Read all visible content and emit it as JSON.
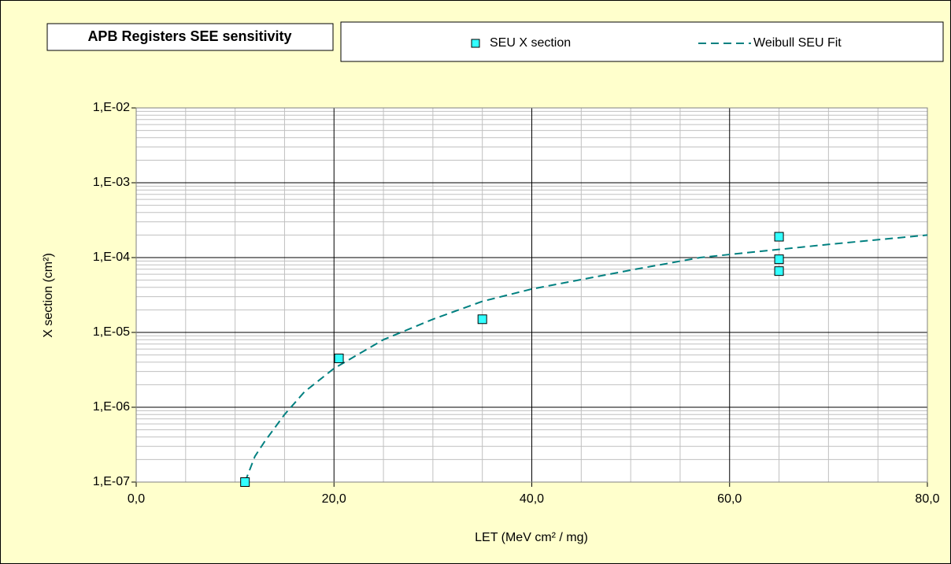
{
  "chart_data": {
    "type": "scatter",
    "title": "APB Registers SEE sensitivity",
    "xlabel": "LET (MeV cm² / mg)",
    "ylabel": "X section (cm²)",
    "xlim": [
      0,
      80
    ],
    "ylim": [
      1e-07,
      0.01
    ],
    "yscale": "log",
    "grid": true,
    "minor_grid": true,
    "xticks": [
      {
        "value": 0,
        "label": "0,0"
      },
      {
        "value": 20,
        "label": "20,0"
      },
      {
        "value": 40,
        "label": "40,0"
      },
      {
        "value": 60,
        "label": "60,0"
      },
      {
        "value": 80,
        "label": "80,0"
      }
    ],
    "yticks": [
      {
        "value": 1e-07,
        "label": "1,E-07"
      },
      {
        "value": 1e-06,
        "label": "1,E-06"
      },
      {
        "value": 1e-05,
        "label": "1,E-05"
      },
      {
        "value": 0.0001,
        "label": "1,E-04"
      },
      {
        "value": 0.001,
        "label": "1,E-03"
      },
      {
        "value": 0.01,
        "label": "1,E-02"
      }
    ],
    "legend": "top",
    "series": [
      {
        "name": "SEU X section",
        "type": "scatter",
        "color": "#33ffff",
        "x": [
          11,
          20.5,
          35,
          65,
          65,
          65
        ],
        "values": [
          1e-07,
          4.5e-06,
          1.5e-05,
          0.00019,
          9.5e-05,
          6.6e-05
        ]
      },
      {
        "name": "Weibull SEU Fit",
        "type": "line",
        "color": "#008080",
        "dashed": true,
        "x": [
          11,
          12,
          13,
          15,
          17,
          20,
          25,
          30,
          35,
          40,
          50,
          57,
          60,
          70,
          80
        ],
        "values": [
          1e-07,
          2.2e-07,
          3.5e-07,
          8e-07,
          1.6e-06,
          3.3e-06,
          8e-06,
          1.5e-05,
          2.6e-05,
          3.8e-05,
          6.8e-05,
          0.0001,
          0.00011,
          0.00015,
          0.0002
        ]
      }
    ]
  }
}
